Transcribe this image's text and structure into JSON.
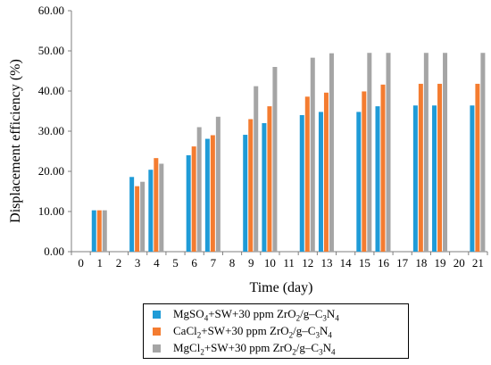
{
  "chart_data": {
    "type": "bar",
    "title": "",
    "xlabel": "Time (day)",
    "ylabel": "Displacement efficiency (%)",
    "ylim": [
      0,
      60
    ],
    "y_ticks": [
      "0.00",
      "10.00",
      "20.00",
      "30.00",
      "40.00",
      "50.00",
      "60.00"
    ],
    "y_tick_values": [
      0,
      10,
      20,
      30,
      40,
      50,
      60
    ],
    "categories": [
      "0",
      "1",
      "2",
      "3",
      "4",
      "5",
      "6",
      "7",
      "8",
      "9",
      "10",
      "11",
      "12",
      "13",
      "14",
      "15",
      "16",
      "17",
      "18",
      "19",
      "20",
      "21"
    ],
    "grid": false,
    "legend_position": "bottom",
    "series": [
      {
        "name": "MgSO4+SW+30 ppm ZrO2/g–C3N4",
        "color": "#1f9bd7",
        "values": [
          null,
          10.3,
          null,
          18.6,
          20.4,
          null,
          24.0,
          28.1,
          null,
          29.1,
          32.0,
          null,
          34.0,
          34.8,
          null,
          34.8,
          36.2,
          null,
          36.4,
          36.4,
          null,
          36.4
        ]
      },
      {
        "name": "CaCl2+SW+30 ppm ZrO2/g–C3N4",
        "color": "#f47c30",
        "values": [
          null,
          10.3,
          null,
          16.3,
          23.3,
          null,
          26.2,
          29.0,
          null,
          33.0,
          36.2,
          null,
          38.6,
          39.6,
          null,
          39.9,
          41.6,
          null,
          41.8,
          41.8,
          null,
          41.8
        ]
      },
      {
        "name": "MgCl2+SW+30 ppm ZrO2/g–C3N4",
        "color": "#a5a5a5",
        "values": [
          null,
          10.3,
          null,
          17.4,
          21.9,
          null,
          31.0,
          33.6,
          null,
          41.2,
          46.0,
          null,
          48.3,
          49.4,
          null,
          49.5,
          49.5,
          null,
          49.5,
          49.5,
          null,
          49.5
        ]
      }
    ]
  },
  "legend": {
    "items": [
      {
        "prefix": "MgSO",
        "sub1": "4",
        "middle": "+SW+30 ppm ZrO",
        "sub2": "2",
        "tail": "/g–C",
        "sub3": "3",
        "end": "N",
        "sub4": "4"
      },
      {
        "prefix": "CaCl",
        "sub1": "2",
        "middle": "+SW+30 ppm ZrO",
        "sub2": "2",
        "tail": "/g–C",
        "sub3": "3",
        "end": "N",
        "sub4": "4"
      },
      {
        "prefix": "MgCl",
        "sub1": "2",
        "middle": "+SW+30 ppm ZrO",
        "sub2": "2",
        "tail": "/g–C",
        "sub3": "3",
        "end": "N",
        "sub4": "4"
      }
    ]
  }
}
